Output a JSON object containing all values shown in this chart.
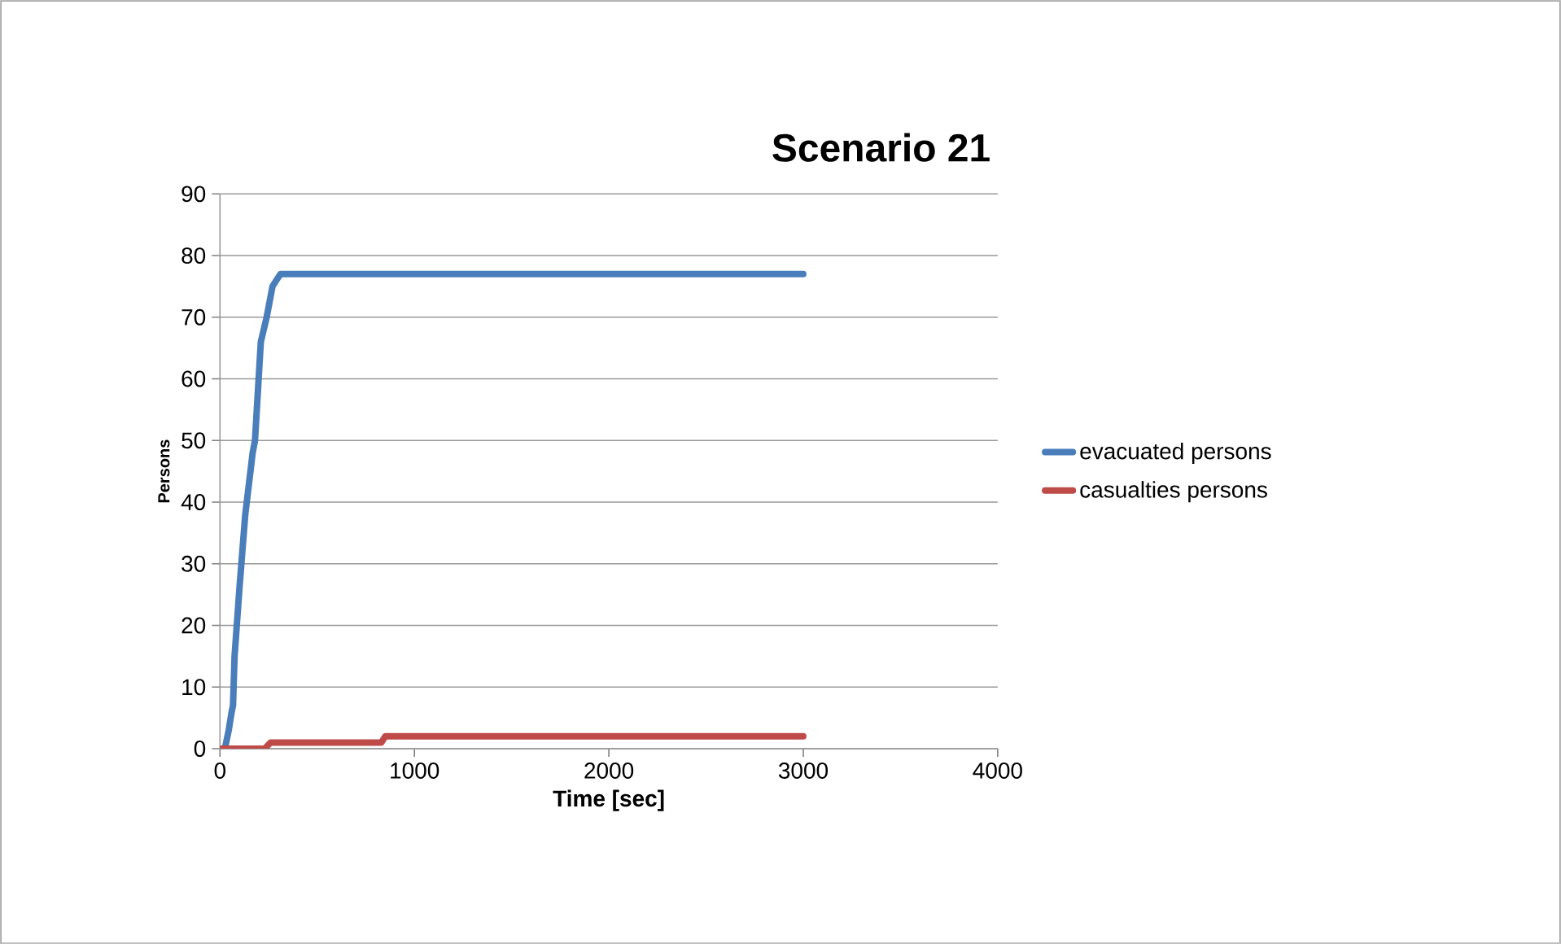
{
  "chart_data": {
    "type": "line",
    "title": "Scenario 21",
    "xlabel": "Time [sec]",
    "ylabel": "Persons",
    "xlim": [
      0,
      4000
    ],
    "xticks": [
      0,
      1000,
      2000,
      3000,
      4000
    ],
    "ylim": [
      0,
      90
    ],
    "yticks": [
      0,
      10,
      20,
      30,
      40,
      50,
      60,
      70,
      80,
      90
    ],
    "grid": "y",
    "legend": "right",
    "marker": "none",
    "line_style": "solid",
    "series": [
      {
        "name": "evacuated persons",
        "color": "#4a7ebb",
        "x": [
          25,
          45,
          60,
          67,
          75,
          100,
          130,
          168,
          180,
          210,
          240,
          252,
          270,
          290,
          311,
          1000,
          2000,
          3000
        ],
        "values": [
          0,
          3,
          6,
          7,
          15,
          26,
          38,
          48,
          50,
          66,
          70,
          72,
          75,
          76,
          77,
          77,
          77,
          77
        ]
      },
      {
        "name": "casualties persons",
        "color": "#be4b48",
        "x": [
          0,
          230,
          260,
          830,
          850,
          3000
        ],
        "values": [
          0,
          0,
          1,
          1,
          2,
          2
        ]
      }
    ]
  }
}
